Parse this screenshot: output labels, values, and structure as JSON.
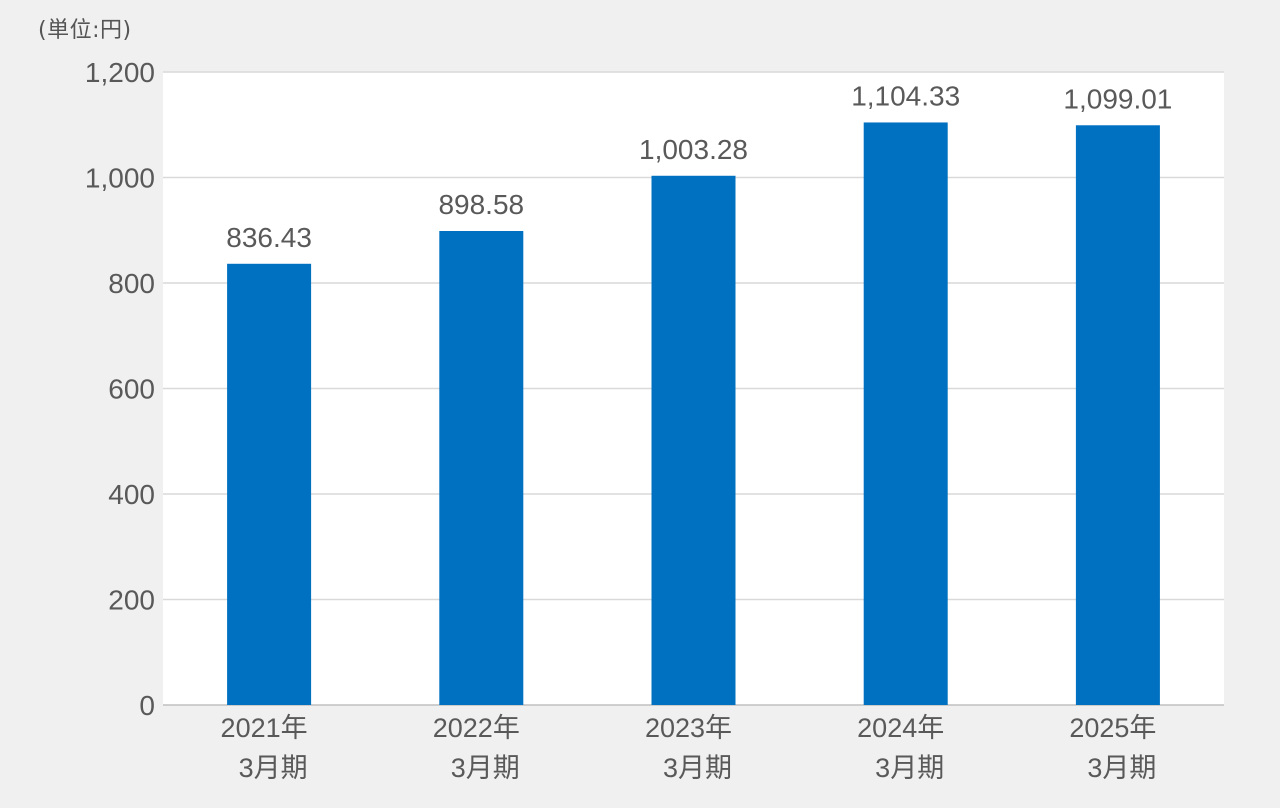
{
  "unit_label": "(単位:円)",
  "colors": {
    "bar": "#0070c0",
    "plot_background": "#ffffff",
    "page_background": "#f0f0f0",
    "gridline": "#d9d9d9",
    "text": "#595959"
  },
  "chart_data": {
    "type": "bar",
    "categories": [
      [
        "2021年",
        "3月期"
      ],
      [
        "2022年",
        "3月期"
      ],
      [
        "2023年",
        "3月期"
      ],
      [
        "2024年",
        "3月期"
      ],
      [
        "2025年",
        "3月期"
      ]
    ],
    "series": [
      {
        "values": [
          836.43,
          898.58,
          1003.28,
          1104.33,
          1099.01
        ],
        "value_labels": [
          "836.43",
          "898.58",
          "1,003.28",
          "1,104.33",
          "1,099.01"
        ]
      }
    ],
    "ylim": [
      0,
      1200
    ],
    "yticks": [
      0,
      200,
      400,
      600,
      800,
      1000,
      1200
    ],
    "ytick_labels": [
      "0",
      "200",
      "400",
      "600",
      "800",
      "1,000",
      "1,200"
    ],
    "grid": true,
    "legend": "none"
  }
}
